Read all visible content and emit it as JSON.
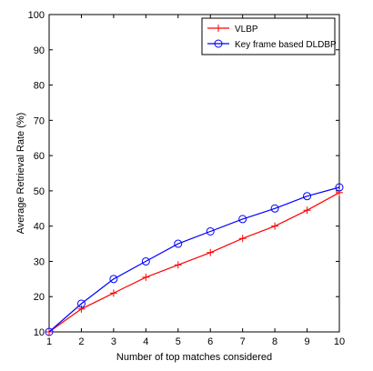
{
  "chart_data": {
    "type": "line",
    "title": "",
    "xlabel": "Number of top matches considered",
    "ylabel": "Average Retrieval Rate (%)",
    "xlim": [
      1,
      10
    ],
    "ylim": [
      10,
      100
    ],
    "x": [
      1,
      2,
      3,
      4,
      5,
      6,
      7,
      8,
      9,
      10
    ],
    "xticks": [
      "1",
      "2",
      "3",
      "4",
      "5",
      "6",
      "7",
      "8",
      "9",
      "10"
    ],
    "yticks": [
      "10",
      "20",
      "30",
      "40",
      "50",
      "60",
      "70",
      "80",
      "90",
      "100"
    ],
    "grid": false,
    "legend_position": "top-right",
    "series": [
      {
        "name": "VLBP",
        "color": "#ff0000",
        "marker": "plus",
        "values": [
          10,
          16.5,
          21,
          25.5,
          29,
          32.5,
          36.5,
          40,
          44.5,
          49.5
        ]
      },
      {
        "name": "Key frame based DLDBP",
        "color": "#0000ff",
        "marker": "circle",
        "values": [
          10,
          18,
          25,
          30,
          35,
          38.5,
          42,
          45,
          48.5,
          51
        ]
      }
    ]
  }
}
